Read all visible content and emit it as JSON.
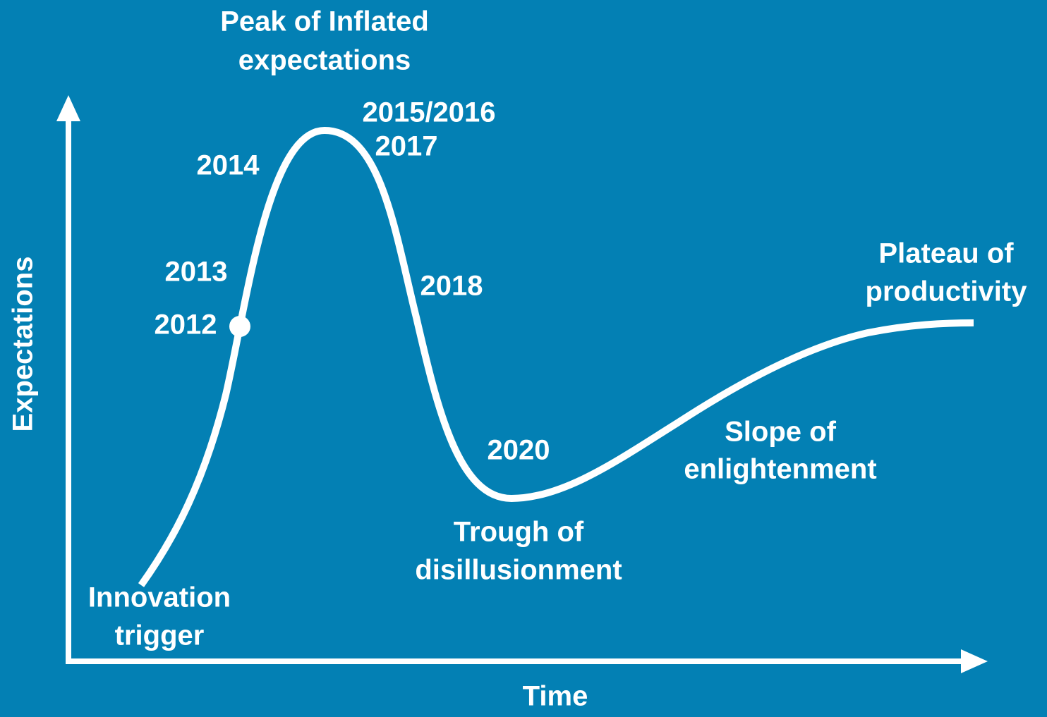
{
  "axes": {
    "y": "Expectations",
    "x": "Time"
  },
  "phases": {
    "peak": [
      "Peak of Inflated",
      "expectations"
    ],
    "trigger": [
      "Innovation",
      "trigger"
    ],
    "trough": [
      "Trough of",
      "disillusionment"
    ],
    "slope": [
      "Slope of",
      "enlightenment"
    ],
    "plateau": [
      "Plateau of",
      "productivity"
    ]
  },
  "years": [
    "2012",
    "2013",
    "2014",
    "2015/2016",
    "2017",
    "2018",
    "2020"
  ]
}
